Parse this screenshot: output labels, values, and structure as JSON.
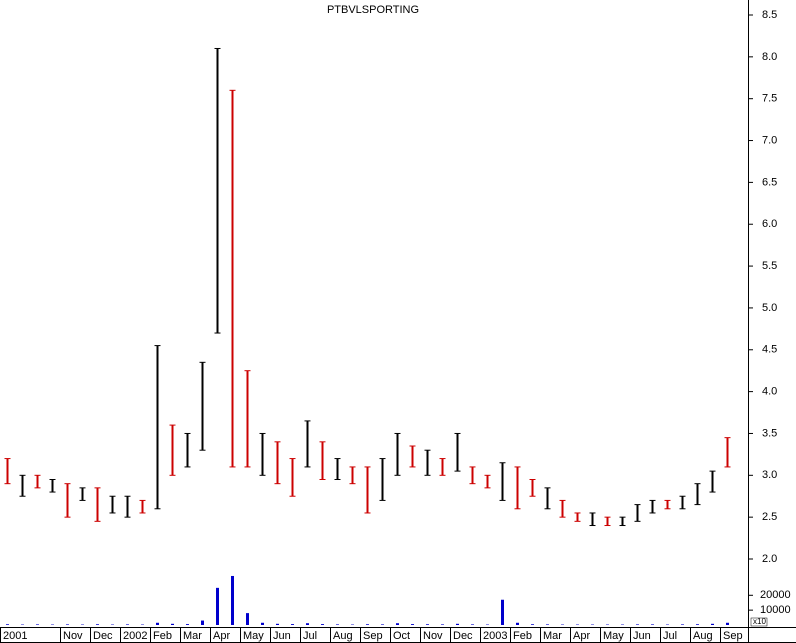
{
  "chart_data": {
    "type": "ohlc",
    "title": "PTBVLSPORTING",
    "categories": [
      "2001",
      null,
      null,
      null,
      "Nov",
      null,
      "Dec",
      null,
      "2002",
      null,
      "Feb",
      null,
      "Mar",
      null,
      "Apr",
      null,
      "May",
      null,
      "Jun",
      null,
      "Jul",
      null,
      "Aug",
      null,
      "Sep",
      null,
      "Oct",
      null,
      "Nov",
      null,
      "Dec",
      null,
      "2003",
      null,
      "Feb",
      null,
      "Mar",
      null,
      "Apr",
      null,
      "May",
      null,
      "Jun",
      null,
      "Jul",
      null,
      "Aug",
      null,
      "Sep"
    ],
    "high": [
      3.2,
      3.0,
      3.0,
      2.95,
      2.9,
      2.85,
      2.85,
      2.75,
      2.75,
      2.7,
      4.55,
      3.6,
      3.5,
      4.35,
      8.1,
      7.6,
      4.25,
      3.5,
      3.4,
      3.2,
      3.65,
      3.4,
      3.2,
      3.1,
      3.1,
      3.2,
      3.5,
      3.35,
      3.3,
      3.2,
      3.5,
      3.1,
      3.0,
      3.15,
      3.1,
      2.95,
      2.85,
      2.7,
      2.55,
      2.55,
      2.5,
      2.5,
      2.65,
      2.7,
      2.7,
      2.75,
      2.9,
      3.05,
      3.45
    ],
    "low": [
      2.9,
      2.75,
      2.85,
      2.8,
      2.5,
      2.7,
      2.45,
      2.55,
      2.5,
      2.55,
      2.6,
      3.0,
      3.1,
      3.3,
      4.7,
      3.1,
      3.1,
      3.0,
      2.9,
      2.75,
      3.1,
      2.95,
      2.95,
      2.9,
      2.55,
      2.7,
      3.0,
      3.1,
      3.0,
      3.0,
      3.05,
      2.9,
      2.85,
      2.7,
      2.6,
      2.75,
      2.6,
      2.5,
      2.45,
      2.4,
      2.4,
      2.4,
      2.45,
      2.55,
      2.6,
      2.6,
      2.65,
      2.8,
      3.1
    ],
    "colors": [
      "#cc0000",
      "#000000",
      "#cc0000",
      "#000000",
      "#cc0000",
      "#000000",
      "#cc0000",
      "#000000",
      "#000000",
      "#cc0000",
      "#000000",
      "#cc0000",
      "#000000",
      "#000000",
      "#000000",
      "#cc0000",
      "#cc0000",
      "#000000",
      "#cc0000",
      "#cc0000",
      "#000000",
      "#cc0000",
      "#000000",
      "#cc0000",
      "#cc0000",
      "#000000",
      "#000000",
      "#cc0000",
      "#000000",
      "#cc0000",
      "#000000",
      "#cc0000",
      "#cc0000",
      "#000000",
      "#cc0000",
      "#cc0000",
      "#000000",
      "#cc0000",
      "#cc0000",
      "#000000",
      "#cc0000",
      "#000000",
      "#000000",
      "#000000",
      "#cc0000",
      "#000000",
      "#000000",
      "#000000",
      "#cc0000"
    ],
    "volume": [
      500,
      300,
      400,
      300,
      400,
      300,
      500,
      300,
      400,
      300,
      1500,
      800,
      600,
      3000,
      25000,
      33000,
      8000,
      1500,
      800,
      600,
      1200,
      600,
      400,
      300,
      500,
      400,
      1200,
      600,
      500,
      400,
      800,
      400,
      300,
      17000,
      1500,
      500,
      400,
      300,
      300,
      300,
      300,
      300,
      400,
      400,
      300,
      400,
      500,
      800,
      1500
    ],
    "volume_color": "#0000cc",
    "ylim": [
      2.0,
      8.5
    ],
    "yticks": [
      {
        "value": 2.0,
        "label": "2.0"
      },
      2.5,
      {
        "value": 3.0,
        "label": "3.0"
      },
      3.5,
      {
        "value": 4.0,
        "label": "4.0"
      },
      4.5,
      {
        "value": 5.0,
        "label": "5.0"
      },
      5.5,
      {
        "value": 6.0,
        "label": "6.0"
      },
      6.5,
      {
        "value": 7.0,
        "label": "7.0"
      },
      7.5,
      {
        "value": 8.0,
        "label": "8.0"
      },
      8.5
    ],
    "vlim": [
      0,
      35000
    ],
    "vticks": [
      10000,
      20000
    ],
    "volume_unit_label": "x10"
  }
}
